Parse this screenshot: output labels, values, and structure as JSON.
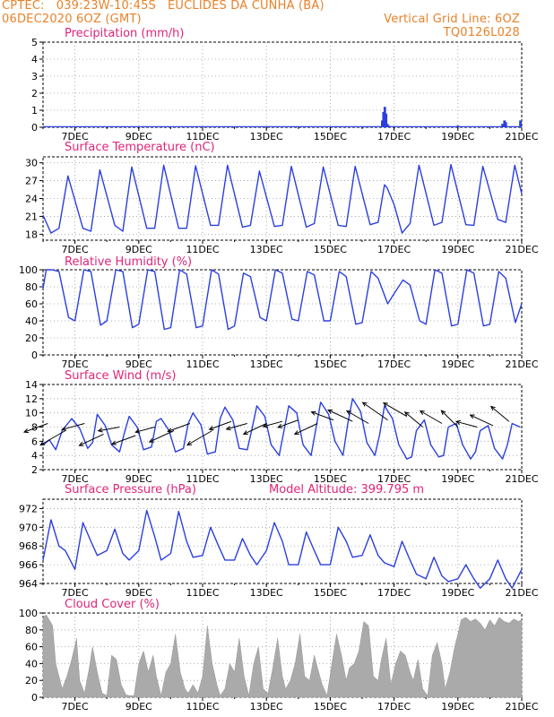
{
  "header": {
    "line1_left": "CPTEC:   039:23W-10:45S   EUCLIDES DA CUNHA (BA)",
    "line2_left": "06DEC2020 6OZ (GMT)",
    "line2_right": "Vertical Grid Line: 6OZ",
    "line3_right": "TQ0126L028"
  },
  "colors": {
    "header": "#e8822a",
    "title": "#e0247a",
    "line": "#2b3fe0",
    "fill": "#aaaaaa",
    "grid": "#9a9a9a"
  },
  "x_axis": {
    "ticks": [
      "7DEC",
      "9DEC",
      "11DEC",
      "13DEC",
      "15DEC",
      "17DEC",
      "19DEC",
      "21DEC"
    ],
    "tick_days": [
      7,
      9,
      11,
      13,
      15,
      17,
      19,
      21
    ],
    "start_day": 6.0,
    "end_day": 21.0
  },
  "chart_data": [
    {
      "type": "bar",
      "title": "Precipitation (mm/h)",
      "ylim": [
        0,
        5
      ],
      "yticks": [
        0,
        1,
        2,
        3,
        4,
        5
      ],
      "x_day": [
        16.63,
        16.67,
        16.71,
        16.75,
        16.79,
        16.83,
        19.0,
        20.4,
        20.46,
        20.5,
        20.96
      ],
      "values": [
        0.4,
        0.9,
        1.2,
        0.8,
        0.2,
        0.1,
        0.1,
        0.2,
        0.4,
        0.3,
        0.4
      ]
    },
    {
      "type": "line",
      "title": "Surface Temperature (nC)",
      "ylim": [
        17,
        31
      ],
      "yticks": [
        18,
        21,
        24,
        27,
        30
      ],
      "x_day": [
        6.0,
        6.25,
        6.5,
        6.78,
        7.25,
        7.5,
        7.78,
        8.25,
        8.5,
        8.78,
        9.25,
        9.5,
        9.78,
        10.25,
        10.5,
        10.78,
        11.25,
        11.5,
        11.78,
        12.25,
        12.5,
        12.78,
        13.25,
        13.5,
        13.78,
        14.25,
        14.5,
        14.78,
        15.25,
        15.5,
        15.78,
        16.25,
        16.5,
        16.7,
        16.78,
        17.0,
        17.25,
        17.5,
        17.78,
        18.25,
        18.5,
        18.78,
        19.25,
        19.5,
        19.78,
        20.25,
        20.5,
        20.78,
        21.0
      ],
      "values": [
        21.2,
        18.2,
        19.0,
        27.8,
        19.0,
        18.5,
        28.8,
        19.5,
        18.5,
        29.3,
        19.0,
        19.0,
        29.6,
        19.0,
        19.0,
        29.5,
        19.5,
        19.5,
        29.6,
        19.2,
        19.5,
        28.6,
        19.3,
        19.5,
        29.4,
        19.2,
        19.8,
        29.3,
        19.5,
        19.3,
        29.4,
        19.6,
        20.0,
        26.3,
        25.8,
        23.0,
        18.2,
        19.8,
        29.6,
        19.5,
        20.0,
        29.7,
        19.6,
        19.5,
        29.4,
        20.5,
        20.0,
        29.6,
        24.8
      ]
    },
    {
      "type": "line",
      "title": "Relative Humidity (%)",
      "ylim": [
        0,
        100
      ],
      "yticks": [
        0,
        20,
        40,
        60,
        80,
        100
      ],
      "x_day": [
        6.0,
        6.1,
        6.28,
        6.5,
        6.8,
        7.0,
        7.28,
        7.5,
        7.8,
        8.0,
        8.28,
        8.5,
        8.8,
        9.0,
        9.28,
        9.5,
        9.8,
        10.0,
        10.28,
        10.5,
        10.8,
        11.0,
        11.28,
        11.5,
        11.8,
        12.0,
        12.28,
        12.5,
        12.8,
        13.0,
        13.28,
        13.5,
        13.8,
        14.0,
        14.28,
        14.5,
        14.8,
        15.0,
        15.28,
        15.5,
        15.8,
        16.0,
        16.28,
        16.5,
        16.8,
        17.0,
        17.28,
        17.5,
        17.8,
        18.0,
        18.28,
        18.5,
        18.8,
        19.0,
        19.28,
        19.5,
        19.8,
        20.0,
        20.28,
        20.5,
        20.8,
        21.0
      ],
      "values": [
        78,
        100,
        100,
        98,
        44,
        40,
        100,
        98,
        35,
        40,
        100,
        98,
        32,
        36,
        100,
        98,
        30,
        32,
        100,
        95,
        32,
        34,
        100,
        95,
        30,
        34,
        96,
        92,
        44,
        40,
        100,
        96,
        42,
        40,
        98,
        94,
        40,
        40,
        98,
        92,
        36,
        38,
        98,
        90,
        60,
        72,
        88,
        82,
        40,
        36,
        100,
        96,
        34,
        36,
        100,
        96,
        34,
        36,
        98,
        90,
        38,
        60
      ]
    },
    {
      "type": "line",
      "title": "Surface Wind (m/s)",
      "ylim": [
        2,
        14
      ],
      "yticks": [
        2,
        4,
        6,
        8,
        10,
        12,
        14
      ],
      "x_day": [
        6.0,
        6.2,
        6.4,
        6.6,
        6.9,
        7.15,
        7.4,
        7.55,
        7.7,
        7.95,
        8.15,
        8.4,
        8.55,
        8.7,
        8.95,
        9.15,
        9.4,
        9.55,
        9.7,
        9.95,
        10.15,
        10.4,
        10.55,
        10.7,
        10.95,
        11.15,
        11.4,
        11.55,
        11.7,
        11.95,
        12.15,
        12.4,
        12.55,
        12.7,
        12.95,
        13.15,
        13.4,
        13.55,
        13.7,
        13.95,
        14.15,
        14.4,
        14.55,
        14.7,
        14.95,
        15.15,
        15.4,
        15.55,
        15.7,
        15.95,
        16.15,
        16.4,
        16.55,
        16.7,
        16.95,
        17.15,
        17.4,
        17.55,
        17.7,
        17.95,
        18.15,
        18.4,
        18.55,
        18.7,
        18.95,
        19.15,
        19.4,
        19.55,
        19.7,
        19.95,
        20.15,
        20.4,
        20.55,
        20.7,
        20.95
      ],
      "values": [
        5.5,
        6.2,
        4.8,
        7.5,
        9.2,
        7.8,
        5.0,
        5.8,
        9.8,
        8.2,
        5.5,
        4.5,
        7.2,
        9.5,
        8.0,
        4.8,
        5.2,
        8.8,
        9.2,
        7.5,
        4.5,
        5.0,
        8.5,
        10.0,
        8.3,
        4.2,
        4.5,
        9.2,
        10.8,
        9.0,
        5.0,
        4.8,
        7.8,
        11.0,
        9.5,
        5.5,
        4.0,
        7.5,
        11.0,
        10.0,
        5.5,
        4.0,
        7.8,
        11.5,
        9.8,
        6.0,
        4.0,
        8.5,
        12.0,
        10.2,
        5.8,
        4.0,
        7.0,
        11.0,
        9.2,
        5.5,
        3.5,
        3.8,
        7.5,
        9.0,
        5.5,
        3.8,
        4.0,
        8.0,
        8.5,
        5.5,
        3.5,
        4.5,
        7.5,
        8.2,
        5.0,
        3.5,
        5.5,
        8.5,
        8.0
      ]
    },
    {
      "type": "line",
      "title": "Surface Pressure (hPa)",
      "annotation": "Model Altitude: 399.795 m",
      "ylim": [
        964,
        973
      ],
      "yticks": [
        964,
        966,
        968,
        970,
        972
      ],
      "x_day": [
        6.0,
        6.25,
        6.5,
        6.7,
        7.0,
        7.25,
        7.5,
        7.7,
        8.0,
        8.25,
        8.5,
        8.7,
        9.0,
        9.25,
        9.5,
        9.7,
        10.0,
        10.25,
        10.5,
        10.7,
        11.0,
        11.25,
        11.5,
        11.7,
        12.0,
        12.25,
        12.5,
        12.7,
        13.0,
        13.25,
        13.5,
        13.7,
        14.0,
        14.25,
        14.5,
        14.7,
        15.0,
        15.25,
        15.5,
        15.7,
        16.0,
        16.25,
        16.5,
        16.7,
        17.0,
        17.25,
        17.5,
        17.7,
        18.0,
        18.25,
        18.5,
        18.7,
        19.0,
        19.25,
        19.5,
        19.7,
        20.0,
        20.25,
        20.5,
        20.7,
        21.0
      ],
      "values": [
        966.5,
        970.8,
        968.0,
        967.5,
        965.5,
        970.5,
        968.5,
        967.0,
        967.5,
        969.8,
        967.2,
        966.5,
        967.5,
        971.8,
        969.0,
        966.5,
        967.2,
        971.7,
        968.5,
        966.8,
        967.0,
        970.0,
        968.0,
        966.5,
        966.5,
        968.8,
        967.0,
        966.0,
        967.5,
        970.5,
        968.5,
        966.0,
        966.0,
        969.5,
        967.5,
        966.0,
        966.0,
        970.0,
        968.5,
        966.8,
        967.0,
        969.2,
        967.0,
        966.2,
        965.8,
        968.5,
        966.5,
        965.0,
        964.5,
        966.8,
        964.8,
        964.2,
        964.5,
        966.0,
        964.5,
        963.5,
        964.5,
        966.5,
        964.5,
        963.5,
        965.5
      ]
    },
    {
      "type": "area",
      "title": "Cloud Cover (%)",
      "ylim": [
        0,
        100
      ],
      "yticks": [
        0,
        20,
        40,
        60,
        80,
        100
      ],
      "x_day": [
        6.0,
        6.1,
        6.15,
        6.3,
        6.4,
        6.6,
        6.75,
        6.9,
        7.05,
        7.15,
        7.3,
        7.45,
        7.55,
        7.7,
        7.85,
        8.0,
        8.15,
        8.3,
        8.45,
        8.6,
        8.7,
        8.85,
        9.0,
        9.15,
        9.3,
        9.45,
        9.55,
        9.7,
        9.85,
        10.0,
        10.15,
        10.3,
        10.45,
        10.55,
        10.7,
        10.85,
        11.0,
        11.15,
        11.3,
        11.45,
        11.55,
        11.7,
        11.85,
        12.0,
        12.15,
        12.3,
        12.45,
        12.6,
        12.75,
        12.9,
        13.05,
        13.2,
        13.35,
        13.5,
        13.6,
        13.75,
        13.9,
        14.05,
        14.2,
        14.35,
        14.5,
        14.6,
        14.75,
        14.9,
        15.05,
        15.2,
        15.35,
        15.5,
        15.6,
        15.75,
        15.9,
        16.05,
        16.2,
        16.35,
        16.5,
        16.6,
        16.75,
        16.9,
        17.05,
        17.2,
        17.35,
        17.5,
        17.6,
        17.75,
        17.9,
        18.05,
        18.2,
        18.35,
        18.5,
        18.6,
        18.75,
        18.9,
        19.0,
        19.1,
        19.25,
        19.4,
        19.55,
        19.7,
        19.85,
        20.0,
        20.15,
        20.3,
        20.45,
        20.6,
        20.75,
        20.9,
        21.0
      ],
      "values": [
        95,
        98,
        95,
        85,
        40,
        10,
        25,
        45,
        70,
        20,
        5,
        35,
        60,
        30,
        5,
        2,
        50,
        45,
        15,
        3,
        2,
        2,
        40,
        55,
        30,
        50,
        25,
        2,
        30,
        40,
        75,
        30,
        10,
        5,
        15,
        5,
        25,
        85,
        40,
        15,
        2,
        10,
        40,
        30,
        70,
        25,
        2,
        40,
        60,
        10,
        5,
        35,
        70,
        25,
        10,
        20,
        40,
        75,
        25,
        20,
        50,
        35,
        15,
        2,
        40,
        75,
        50,
        20,
        35,
        40,
        55,
        90,
        85,
        25,
        20,
        45,
        70,
        15,
        40,
        55,
        50,
        30,
        20,
        45,
        10,
        2,
        50,
        65,
        40,
        10,
        30,
        60,
        75,
        92,
        95,
        90,
        93,
        88,
        80,
        92,
        85,
        95,
        90,
        88,
        93,
        90,
        92
      ]
    },
    {
      "type": "vectors",
      "title": "Surface Wind (m/s) direction arrows",
      "x_day": [
        6.15,
        6.7,
        7.3,
        7.9,
        8.4,
        8.9,
        9.5,
        10.1,
        10.6,
        11.3,
        11.9,
        12.4,
        13.0,
        13.5,
        14.0,
        14.6,
        15.1,
        15.7,
        16.2,
        16.8,
        17.4,
        17.9,
        18.5,
        19.0,
        19.6,
        20.1,
        20.6
      ],
      "values": [
        8.5,
        7.5,
        8.5,
        7.0,
        8.0,
        6.8,
        8.0,
        7.5,
        8.5,
        7.5,
        8.8,
        8.5,
        8.5,
        8.8,
        9.0,
        8.5,
        9.0,
        8.8,
        8.5,
        9.0,
        9.5,
        8.0,
        8.5,
        8.0,
        8.0,
        8.2,
        8.8
      ],
      "angle_deg": [
        200,
        210,
        195,
        205,
        190,
        200,
        195,
        205,
        200,
        210,
        200,
        195,
        205,
        195,
        200,
        205,
        160,
        155,
        150,
        145,
        150,
        140,
        150,
        135,
        165,
        155,
        140
      ],
      "length_px": [
        28,
        32,
        26,
        30,
        24,
        28,
        22,
        30,
        26,
        32,
        26,
        24,
        28,
        22,
        24,
        28,
        26,
        30,
        28,
        34,
        30,
        26,
        28,
        26,
        24,
        28,
        26
      ]
    }
  ]
}
